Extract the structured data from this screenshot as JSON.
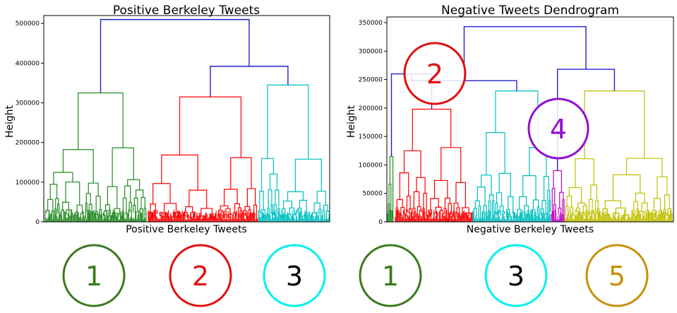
{
  "chart_data": [
    {
      "type": "dendrogram",
      "title": "Positive Berkeley Tweets",
      "xlabel": "Positive Berkeley Tweets",
      "ylabel": "Height",
      "ylim": [
        0,
        520000
      ],
      "yticks": [
        0,
        100000,
        200000,
        300000,
        400000,
        500000
      ],
      "yticklabels": [
        "0",
        "100000",
        "200000",
        "300000",
        "400000",
        "500000"
      ],
      "grid": false,
      "clusters": [
        {
          "id": "1",
          "color": "#228B22",
          "merge_height": 325000
        },
        {
          "id": "2",
          "color": "#FF0000",
          "merge_height": 315000
        },
        {
          "id": "3",
          "color": "#00BFBF",
          "merge_height": 345000
        }
      ],
      "top_merges": [
        {
          "joins": [
            "2",
            "3"
          ],
          "height": 392000,
          "color": "#2020D0"
        },
        {
          "joins": [
            "1",
            "2+3"
          ],
          "height": 510000,
          "color": "#2020D0"
        }
      ],
      "circle_labels": [
        {
          "text": "1",
          "color": "#3A7A1E"
        },
        {
          "text": "2",
          "color": "#E01010"
        },
        {
          "text": "3",
          "color": "#00F0F0",
          "text_color": "#000000"
        }
      ]
    },
    {
      "type": "dendrogram",
      "title": "Negative Tweets Dendrogram",
      "xlabel": "Negative Berkeley Tweets",
      "ylabel": "Height",
      "ylim": [
        0,
        360000
      ],
      "yticks": [
        0,
        50000,
        100000,
        150000,
        200000,
        250000,
        300000,
        350000
      ],
      "yticklabels": [
        "0",
        "50000",
        "100000",
        "150000",
        "200000",
        "250000",
        "300000",
        "350000"
      ],
      "grid": false,
      "clusters": [
        {
          "id": "1",
          "color": "#228B22",
          "merge_height": 115000
        },
        {
          "id": "2",
          "color": "#FF0000",
          "merge_height": 198000
        },
        {
          "id": "3",
          "color": "#00BFBF",
          "merge_height": 230000
        },
        {
          "id": "4",
          "color": "#C000C0",
          "merge_height": 90000
        },
        {
          "id": "5",
          "color": "#BFBF00",
          "merge_height": 230000
        }
      ],
      "top_merges": [
        {
          "joins": [
            "1",
            "2"
          ],
          "height": 260000,
          "color": "#2020D0"
        },
        {
          "joins": [
            "1+2",
            "3"
          ],
          "height": 248000,
          "color": "#2020D0"
        },
        {
          "joins": [
            "4",
            "5"
          ],
          "height": 268000,
          "color": "#2020D0"
        },
        {
          "joins": [
            "1+2+3",
            "4+5"
          ],
          "height": 343000,
          "color": "#2020D0"
        }
      ],
      "callouts": [
        {
          "text": "2",
          "color": "#E01010"
        },
        {
          "text": "4",
          "color": "#9010D0"
        }
      ],
      "circle_labels": [
        {
          "text": "1",
          "color": "#3A7A1E"
        },
        {
          "text": "3",
          "color": "#00F0F0",
          "text_color": "#000000"
        },
        {
          "text": "5",
          "color": "#C8900A"
        }
      ]
    }
  ]
}
